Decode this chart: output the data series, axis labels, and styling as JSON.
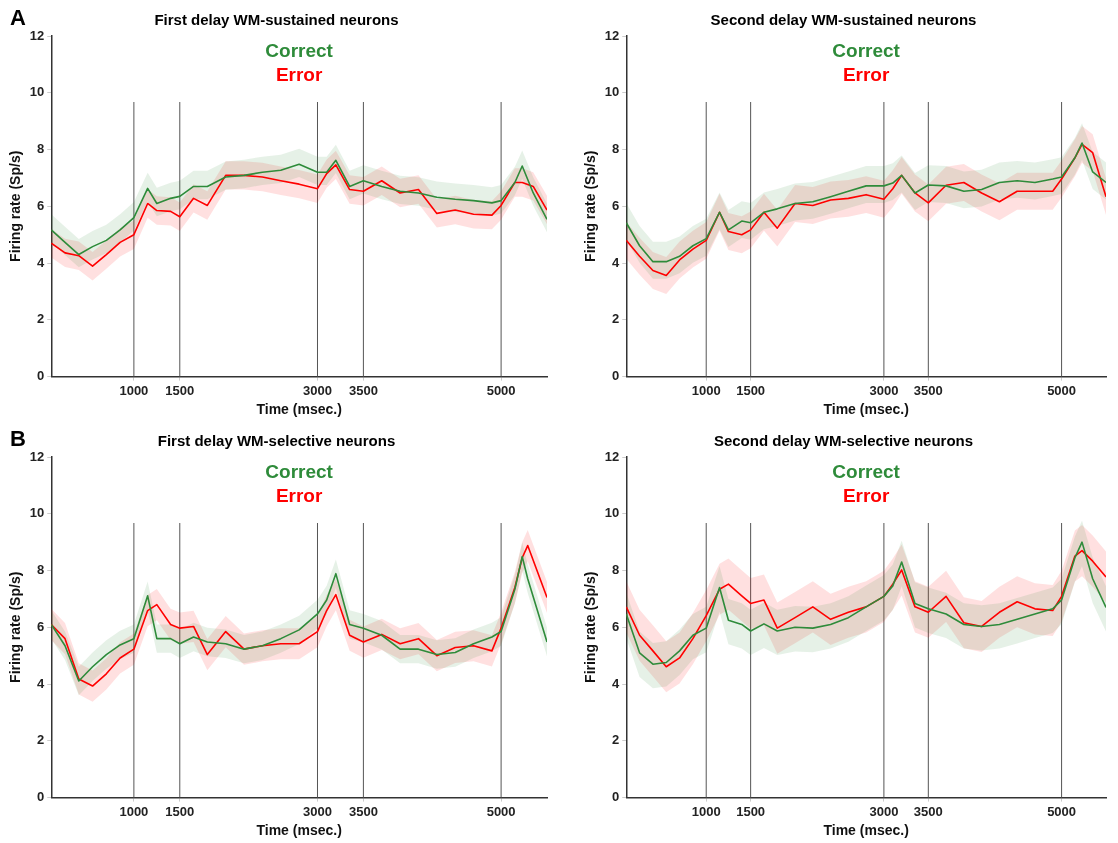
{
  "chart_data": [
    {
      "type": "line",
      "title": "First delay WM-sustained neurons",
      "xlabel": "Time (msec.)",
      "ylabel": "Firing rate (Sp/s)",
      "annotations": [
        "A"
      ],
      "legend": "top",
      "marker": "none",
      "x": [
        100,
        250,
        400,
        550,
        700,
        850,
        1000,
        1150,
        1250,
        1400,
        1500,
        1650,
        1800,
        2000,
        2200,
        2400,
        2600,
        2800,
        3000,
        3100,
        3200,
        3350,
        3500,
        3700,
        3900,
        4100,
        4300,
        4500,
        4700,
        4900,
        5000,
        5150,
        5230,
        5350,
        5500
      ],
      "xlim": [
        100,
        5500
      ],
      "xticks": [
        1000,
        1500,
        3000,
        3500,
        5000
      ],
      "ylim": [
        0,
        12
      ],
      "yticks": [
        0,
        2,
        4,
        6,
        8,
        10,
        12
      ],
      "ref_lines": [
        {
          "axis": "x",
          "value": 1000,
          "color": "#555555"
        },
        {
          "axis": "x",
          "value": 1500,
          "color": "#555555"
        },
        {
          "axis": "x",
          "value": 3000,
          "color": "#555555"
        },
        {
          "axis": "x",
          "value": 3500,
          "color": "#555555"
        },
        {
          "axis": "x",
          "value": 5000,
          "color": "#555555"
        }
      ],
      "series": [
        {
          "name": "Correct",
          "color": "#2e8b3a",
          "values": [
            5.17,
            4.73,
            4.3,
            4.58,
            4.8,
            5.17,
            5.6,
            6.63,
            6.1,
            6.28,
            6.35,
            6.7,
            6.7,
            7.03,
            7.09,
            7.2,
            7.27,
            7.48,
            7.2,
            7.2,
            7.62,
            6.7,
            6.9,
            6.7,
            6.53,
            6.47,
            6.32,
            6.25,
            6.2,
            6.12,
            6.2,
            6.84,
            7.42,
            6.47,
            5.54
          ],
          "lower": [
            4.72,
            4.28,
            3.85,
            4.13,
            4.35,
            4.72,
            5.15,
            6.18,
            5.65,
            5.83,
            5.9,
            6.25,
            6.25,
            6.58,
            6.64,
            6.75,
            6.82,
            7.03,
            6.75,
            6.75,
            7.17,
            6.25,
            6.45,
            6.25,
            6.08,
            6.02,
            5.87,
            5.8,
            5.75,
            5.67,
            5.75,
            6.39,
            6.97,
            6.02,
            5.09
          ],
          "upper": [
            5.72,
            5.28,
            4.85,
            5.13,
            5.35,
            5.72,
            6.15,
            7.18,
            6.65,
            6.83,
            6.9,
            7.25,
            7.25,
            7.58,
            7.64,
            7.75,
            7.82,
            8.03,
            7.75,
            7.75,
            8.17,
            7.25,
            7.45,
            7.25,
            7.08,
            7.02,
            6.87,
            6.8,
            6.75,
            6.67,
            6.75,
            7.39,
            7.97,
            7.02,
            6.09
          ]
        },
        {
          "name": "Error",
          "color": "#ff0000",
          "values": [
            4.7,
            4.36,
            4.26,
            3.89,
            4.3,
            4.73,
            5.0,
            6.1,
            5.85,
            5.82,
            5.63,
            6.28,
            6.03,
            7.09,
            7.09,
            7.03,
            6.9,
            6.78,
            6.62,
            7.15,
            7.46,
            6.59,
            6.53,
            6.9,
            6.47,
            6.59,
            5.75,
            5.87,
            5.72,
            5.69,
            6.03,
            6.84,
            6.84,
            6.7,
            5.87
          ],
          "lower": [
            4.2,
            3.86,
            3.76,
            3.39,
            3.8,
            4.23,
            4.5,
            5.6,
            5.35,
            5.32,
            5.13,
            5.78,
            5.53,
            6.59,
            6.59,
            6.53,
            6.4,
            6.28,
            6.12,
            6.65,
            6.96,
            6.09,
            6.03,
            6.4,
            5.97,
            6.09,
            5.25,
            5.37,
            5.22,
            5.19,
            5.53,
            6.34,
            6.34,
            6.2,
            5.37
          ],
          "upper": [
            5.2,
            4.86,
            4.76,
            4.39,
            4.8,
            5.23,
            5.5,
            6.6,
            6.35,
            6.32,
            6.13,
            6.78,
            6.53,
            7.59,
            7.59,
            7.53,
            7.4,
            7.28,
            7.12,
            7.65,
            7.96,
            7.09,
            7.03,
            7.4,
            6.97,
            7.09,
            6.25,
            6.37,
            6.22,
            6.19,
            6.53,
            7.34,
            7.34,
            7.2,
            6.37
          ]
        }
      ]
    },
    {
      "type": "line",
      "title": "Second delay WM-sustained neurons",
      "xlabel": "Time (msec.)",
      "ylabel": "Firing rate (Sp/s)",
      "legend": "top",
      "marker": "none",
      "x": [
        100,
        250,
        400,
        550,
        700,
        850,
        1000,
        1150,
        1250,
        1400,
        1500,
        1650,
        1800,
        2000,
        2200,
        2400,
        2600,
        2800,
        3000,
        3100,
        3200,
        3350,
        3500,
        3700,
        3900,
        4100,
        4300,
        4500,
        4700,
        4900,
        5000,
        5150,
        5230,
        5350,
        5500
      ],
      "xlim": [
        100,
        5500
      ],
      "xticks": [
        1000,
        1500,
        3000,
        3500,
        5000
      ],
      "ylim": [
        0,
        12
      ],
      "yticks": [
        0,
        2,
        4,
        6,
        8,
        10,
        12
      ],
      "ref_lines": [
        {
          "axis": "x",
          "value": 1000,
          "color": "#555555"
        },
        {
          "axis": "x",
          "value": 1500,
          "color": "#555555"
        },
        {
          "axis": "x",
          "value": 3000,
          "color": "#555555"
        },
        {
          "axis": "x",
          "value": 3500,
          "color": "#555555"
        },
        {
          "axis": "x",
          "value": 5000,
          "color": "#555555"
        }
      ],
      "series": [
        {
          "name": "Correct",
          "color": "#2e8b3a",
          "values": [
            5.42,
            4.61,
            4.05,
            4.05,
            4.24,
            4.61,
            4.86,
            5.79,
            5.17,
            5.48,
            5.42,
            5.79,
            5.91,
            6.1,
            6.16,
            6.34,
            6.53,
            6.72,
            6.72,
            6.82,
            7.09,
            6.47,
            6.75,
            6.72,
            6.53,
            6.59,
            6.84,
            6.9,
            6.84,
            6.96,
            7.03,
            7.71,
            8.23,
            7.21,
            6.84
          ],
          "lower": [
            4.82,
            4.01,
            3.45,
            3.45,
            3.64,
            4.01,
            4.26,
            5.19,
            4.57,
            4.88,
            4.82,
            5.19,
            5.31,
            5.5,
            5.56,
            5.74,
            5.93,
            6.12,
            6.12,
            6.22,
            6.49,
            5.87,
            6.15,
            6.12,
            5.93,
            5.99,
            6.24,
            6.3,
            6.24,
            6.36,
            6.43,
            7.11,
            7.63,
            6.61,
            6.24
          ],
          "upper": [
            6.12,
            5.31,
            4.75,
            4.75,
            4.94,
            5.31,
            5.56,
            6.49,
            5.87,
            6.18,
            6.12,
            6.49,
            6.61,
            6.8,
            6.86,
            7.04,
            7.23,
            7.42,
            7.42,
            7.52,
            7.79,
            7.17,
            7.45,
            7.42,
            7.23,
            7.29,
            7.54,
            7.6,
            7.54,
            7.66,
            7.73,
            8.41,
            8.93,
            7.91,
            7.54
          ]
        },
        {
          "name": "Error",
          "color": "#ff0000",
          "values": [
            4.8,
            4.24,
            3.74,
            3.56,
            4.11,
            4.49,
            4.8,
            5.79,
            5.11,
            5.0,
            5.17,
            5.79,
            5.23,
            6.1,
            6.03,
            6.22,
            6.28,
            6.41,
            6.25,
            6.62,
            7.09,
            6.47,
            6.12,
            6.74,
            6.84,
            6.47,
            6.16,
            6.53,
            6.53,
            6.53,
            6.96,
            7.71,
            8.18,
            7.89,
            6.34
          ],
          "lower": [
            4.15,
            3.59,
            3.09,
            2.91,
            3.46,
            3.84,
            4.15,
            5.14,
            4.46,
            4.35,
            4.52,
            5.14,
            4.58,
            5.45,
            5.38,
            5.57,
            5.63,
            5.76,
            5.6,
            5.97,
            6.44,
            5.82,
            5.47,
            6.09,
            6.19,
            5.82,
            5.51,
            5.88,
            5.88,
            5.88,
            6.31,
            7.06,
            7.53,
            7.24,
            5.69
          ],
          "upper": [
            5.45,
            4.89,
            4.39,
            4.21,
            4.76,
            5.14,
            5.45,
            6.44,
            5.76,
            5.65,
            5.82,
            6.44,
            5.88,
            6.75,
            6.68,
            6.87,
            6.93,
            7.06,
            6.9,
            7.27,
            7.74,
            7.12,
            6.77,
            7.39,
            7.49,
            7.12,
            6.81,
            7.18,
            7.18,
            7.18,
            7.61,
            8.36,
            8.83,
            8.54,
            6.99
          ]
        }
      ]
    },
    {
      "type": "line",
      "title": "First delay WM-selective neurons",
      "xlabel": "Time (msec.)",
      "ylabel": "Firing rate (Sp/s)",
      "annotations": [
        "B"
      ],
      "legend": "top",
      "marker": "none",
      "x": [
        100,
        250,
        400,
        550,
        700,
        850,
        1000,
        1150,
        1250,
        1400,
        1500,
        1650,
        1800,
        2000,
        2200,
        2400,
        2600,
        2800,
        3000,
        3100,
        3200,
        3350,
        3500,
        3700,
        3900,
        4100,
        4300,
        4500,
        4700,
        4900,
        5000,
        5150,
        5230,
        5290,
        5500
      ],
      "xlim": [
        100,
        5500
      ],
      "xticks": [
        1000,
        1500,
        3000,
        3500,
        5000
      ],
      "ylim": [
        0,
        12
      ],
      "yticks": [
        0,
        2,
        4,
        6,
        8,
        10,
        12
      ],
      "ref_lines": [
        {
          "axis": "x",
          "value": 1000,
          "color": "#555555"
        },
        {
          "axis": "x",
          "value": 1500,
          "color": "#555555"
        },
        {
          "axis": "x",
          "value": 3000,
          "color": "#555555"
        },
        {
          "axis": "x",
          "value": 3500,
          "color": "#555555"
        },
        {
          "axis": "x",
          "value": 5000,
          "color": "#555555"
        }
      ],
      "series": [
        {
          "name": "Correct",
          "color": "#2e8b3a",
          "values": [
            6.1,
            5.35,
            4.11,
            4.61,
            5.04,
            5.38,
            5.6,
            7.11,
            5.6,
            5.6,
            5.42,
            5.66,
            5.48,
            5.42,
            5.23,
            5.35,
            5.6,
            5.91,
            6.47,
            6.96,
            7.89,
            6.1,
            5.97,
            5.72,
            5.23,
            5.23,
            5.04,
            5.11,
            5.42,
            5.66,
            5.85,
            7.34,
            8.49,
            7.71,
            5.48
          ],
          "lower": [
            5.6,
            4.85,
            3.61,
            4.11,
            4.54,
            4.88,
            5.1,
            6.61,
            5.1,
            5.1,
            4.92,
            5.16,
            4.98,
            4.92,
            4.73,
            4.85,
            5.1,
            5.41,
            5.97,
            6.46,
            7.39,
            5.6,
            5.47,
            5.22,
            4.73,
            4.73,
            4.54,
            4.61,
            4.92,
            5.16,
            5.35,
            6.84,
            7.99,
            7.21,
            4.98
          ],
          "upper": [
            6.6,
            5.85,
            4.61,
            5.11,
            5.54,
            5.88,
            6.1,
            7.61,
            6.1,
            6.1,
            5.92,
            6.16,
            5.98,
            5.92,
            5.73,
            5.85,
            6.1,
            6.41,
            6.97,
            7.46,
            8.39,
            6.6,
            6.47,
            6.22,
            5.73,
            5.73,
            5.54,
            5.61,
            5.92,
            6.16,
            6.35,
            7.84,
            8.99,
            8.21,
            5.98
          ]
        },
        {
          "name": "Error",
          "color": "#ff0000",
          "values": [
            6.1,
            5.6,
            4.18,
            3.93,
            4.36,
            4.92,
            5.23,
            6.59,
            6.8,
            6.1,
            5.97,
            6.03,
            5.04,
            5.85,
            5.23,
            5.35,
            5.42,
            5.42,
            5.85,
            6.59,
            7.15,
            5.72,
            5.48,
            5.75,
            5.42,
            5.6,
            5.0,
            5.29,
            5.35,
            5.17,
            5.97,
            7.4,
            8.45,
            8.88,
            7.05
          ],
          "lower": [
            5.55,
            5.05,
            3.63,
            3.38,
            3.81,
            4.37,
            4.68,
            6.04,
            6.25,
            5.55,
            5.42,
            5.48,
            4.49,
            5.3,
            4.68,
            4.8,
            4.87,
            4.87,
            5.3,
            6.04,
            6.6,
            5.17,
            4.93,
            5.2,
            4.87,
            5.05,
            4.45,
            4.74,
            4.8,
            4.62,
            5.42,
            6.85,
            7.9,
            8.33,
            6.5
          ],
          "upper": [
            6.65,
            6.15,
            4.73,
            4.48,
            4.91,
            5.47,
            5.78,
            7.14,
            7.35,
            6.65,
            6.52,
            6.58,
            5.59,
            6.4,
            5.78,
            5.9,
            5.97,
            5.97,
            6.4,
            7.14,
            7.7,
            6.27,
            6.03,
            6.3,
            5.97,
            6.15,
            5.55,
            5.84,
            5.9,
            5.72,
            6.52,
            7.95,
            9.0,
            9.43,
            7.6
          ]
        }
      ]
    },
    {
      "type": "line",
      "title": "Second delay WM-selective neurons",
      "xlabel": "Time (msec.)",
      "ylabel": "Firing rate (Sp/s)",
      "legend": "top",
      "marker": "none",
      "x": [
        100,
        250,
        400,
        550,
        700,
        850,
        1000,
        1150,
        1250,
        1400,
        1500,
        1650,
        1800,
        2000,
        2200,
        2400,
        2600,
        2800,
        3000,
        3100,
        3200,
        3350,
        3500,
        3700,
        3900,
        4100,
        4300,
        4500,
        4700,
        4900,
        5000,
        5150,
        5230,
        5350,
        5500
      ],
      "xlim": [
        100,
        5500
      ],
      "xticks": [
        1000,
        1500,
        3000,
        3500,
        5000
      ],
      "ylim": [
        0,
        12
      ],
      "yticks": [
        0,
        2,
        4,
        6,
        8,
        10,
        12
      ],
      "ref_lines": [
        {
          "axis": "x",
          "value": 1000,
          "color": "#555555"
        },
        {
          "axis": "x",
          "value": 1500,
          "color": "#555555"
        },
        {
          "axis": "x",
          "value": 3000,
          "color": "#555555"
        },
        {
          "axis": "x",
          "value": 3500,
          "color": "#555555"
        },
        {
          "axis": "x",
          "value": 5000,
          "color": "#555555"
        }
      ],
      "series": [
        {
          "name": "Correct",
          "color": "#2e8b3a",
          "values": [
            6.47,
            5.1,
            4.7,
            4.76,
            5.17,
            5.72,
            5.97,
            7.4,
            6.25,
            6.1,
            5.87,
            6.12,
            5.87,
            6.0,
            5.97,
            6.1,
            6.34,
            6.72,
            7.09,
            7.46,
            8.3,
            6.84,
            6.65,
            6.47,
            6.1,
            6.03,
            6.1,
            6.28,
            6.47,
            6.65,
            6.96,
            8.45,
            9.0,
            7.71,
            6.7
          ],
          "lower": [
            5.62,
            4.25,
            3.85,
            3.91,
            4.32,
            4.87,
            5.12,
            6.55,
            5.4,
            5.25,
            5.02,
            5.27,
            5.02,
            5.15,
            5.12,
            5.25,
            5.49,
            5.87,
            6.24,
            6.61,
            7.45,
            5.99,
            5.8,
            5.62,
            5.25,
            5.18,
            5.25,
            5.43,
            5.62,
            5.8,
            6.11,
            7.6,
            8.15,
            6.86,
            5.85
          ],
          "upper": [
            7.22,
            5.85,
            5.45,
            5.51,
            5.92,
            6.47,
            6.72,
            8.15,
            7.0,
            6.85,
            6.62,
            6.87,
            6.62,
            6.75,
            6.72,
            6.85,
            7.09,
            7.47,
            7.84,
            8.21,
            9.05,
            7.59,
            7.4,
            7.22,
            6.85,
            6.78,
            6.85,
            7.03,
            7.22,
            7.4,
            7.71,
            9.2,
            9.75,
            8.46,
            7.45
          ]
        },
        {
          "name": "Error",
          "color": "#ff0000",
          "values": [
            6.72,
            5.72,
            5.17,
            4.61,
            4.92,
            5.6,
            6.41,
            7.34,
            7.52,
            7.11,
            6.84,
            6.96,
            5.97,
            6.34,
            6.72,
            6.28,
            6.53,
            6.72,
            7.09,
            7.52,
            8.02,
            6.72,
            6.53,
            7.09,
            6.16,
            6.03,
            6.53,
            6.9,
            6.65,
            6.59,
            7.09,
            8.51,
            8.7,
            8.33,
            7.77
          ],
          "lower": [
            5.82,
            4.82,
            4.27,
            3.71,
            4.02,
            4.7,
            5.51,
            6.44,
            6.62,
            6.21,
            5.94,
            6.06,
            5.07,
            5.44,
            5.82,
            5.38,
            5.63,
            5.82,
            6.19,
            6.62,
            7.12,
            5.82,
            5.63,
            6.19,
            5.26,
            5.13,
            5.63,
            6.0,
            5.75,
            5.69,
            6.19,
            7.61,
            7.8,
            7.43,
            6.87
          ],
          "upper": [
            7.62,
            6.62,
            6.07,
            5.51,
            5.82,
            6.5,
            7.31,
            8.24,
            8.42,
            8.01,
            7.74,
            7.86,
            6.87,
            7.24,
            7.62,
            7.18,
            7.43,
            7.62,
            7.99,
            8.42,
            8.92,
            7.62,
            7.43,
            7.99,
            7.06,
            6.93,
            7.43,
            7.8,
            7.55,
            7.49,
            7.99,
            9.41,
            9.6,
            9.23,
            8.67
          ]
        }
      ]
    }
  ]
}
